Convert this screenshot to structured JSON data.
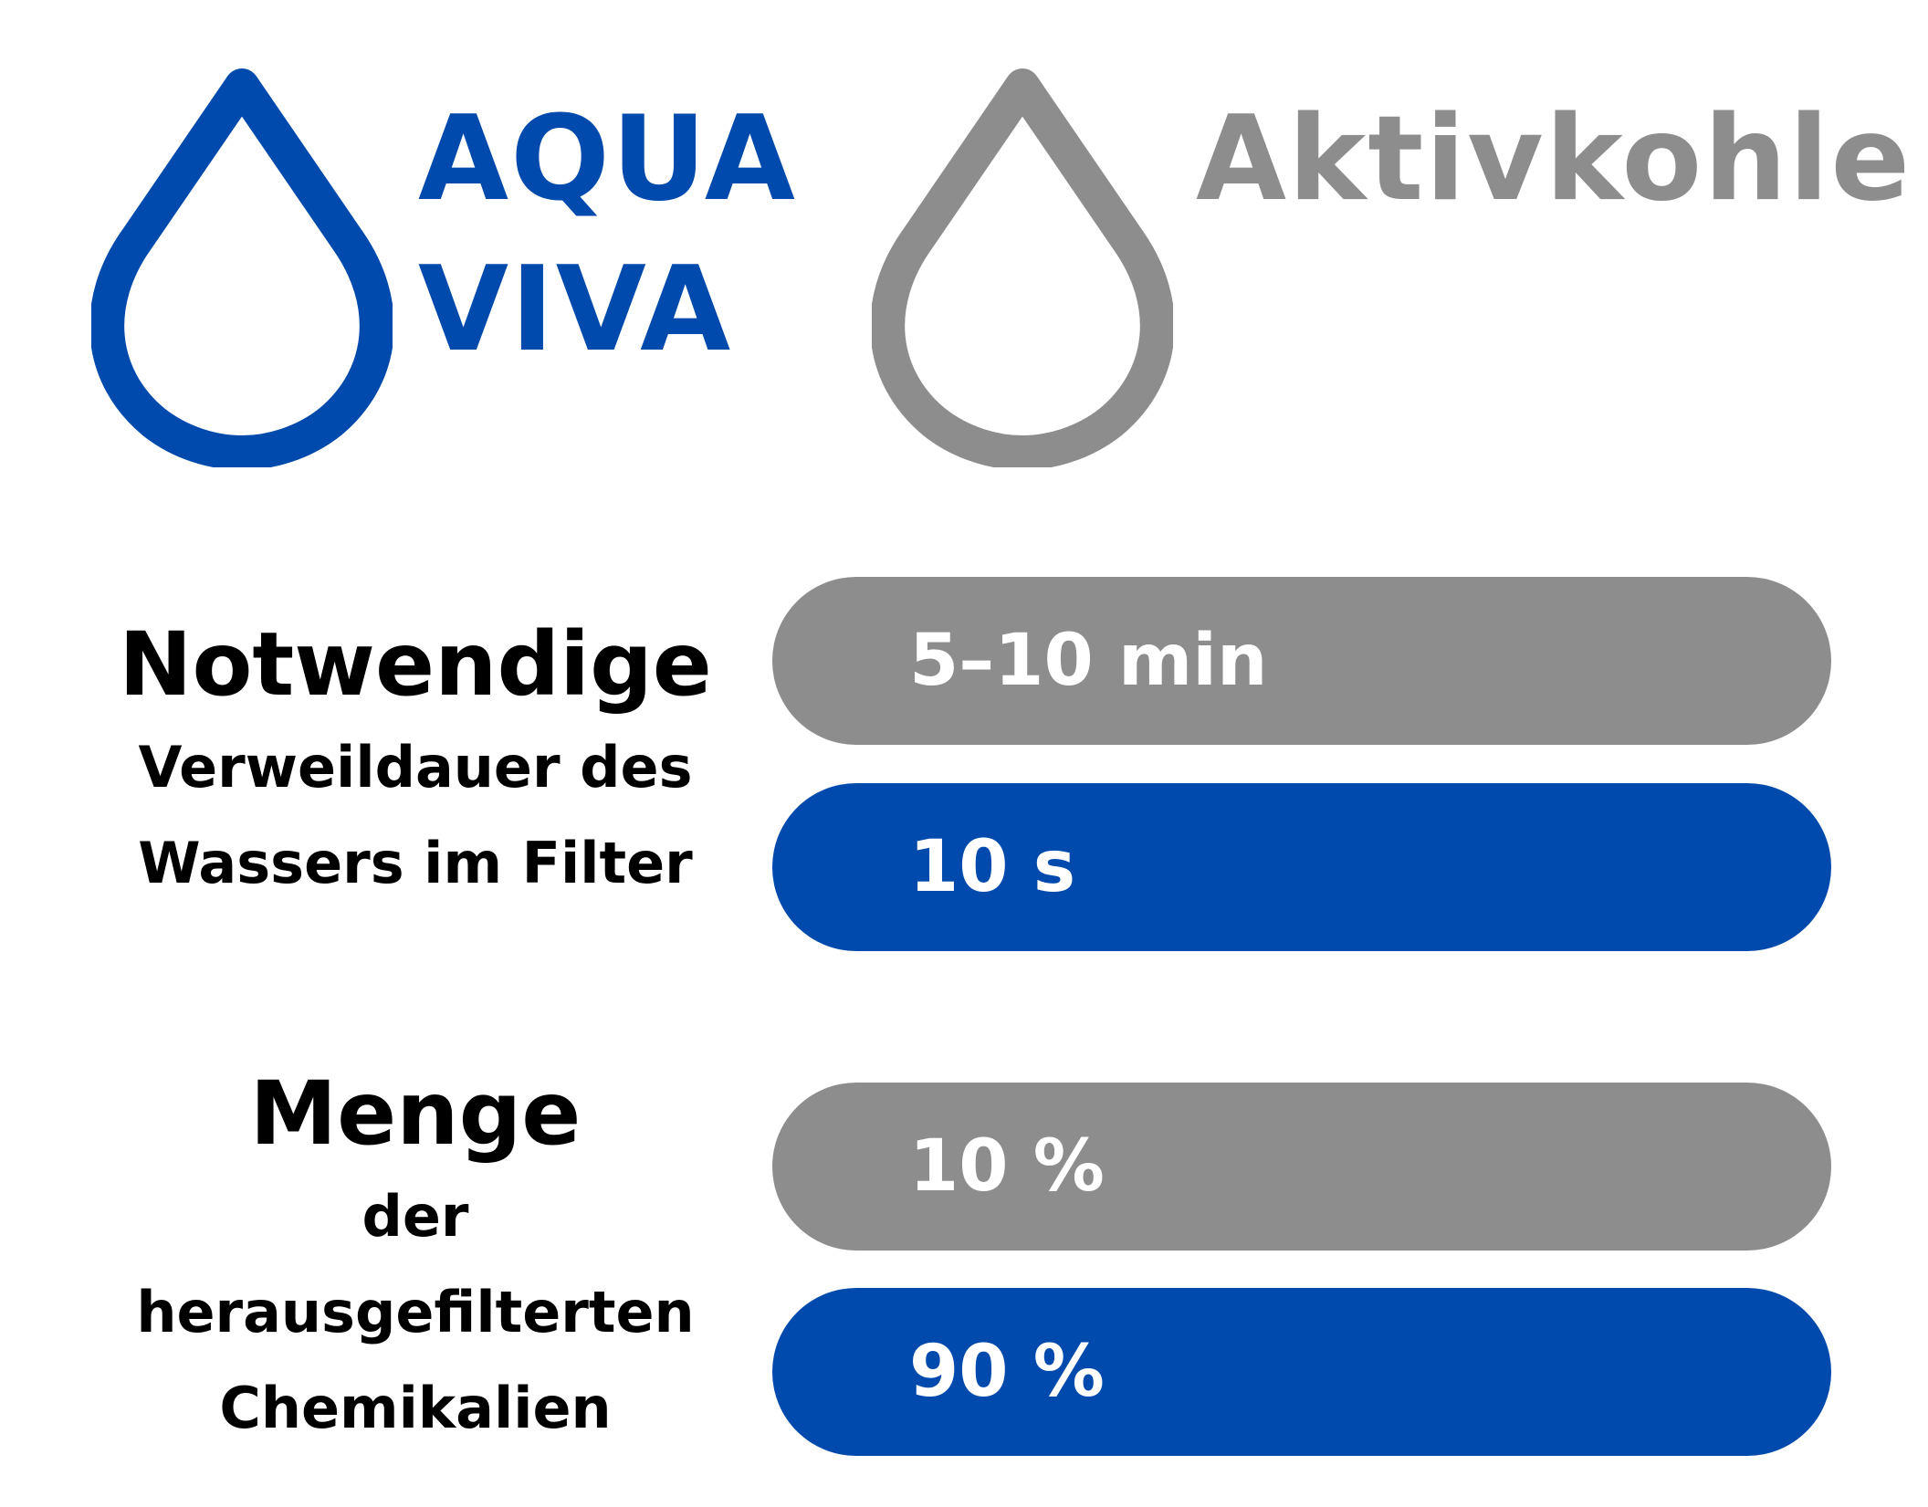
{
  "colors": {
    "blue": "#004AAD",
    "gray": "#8D8D8D",
    "text": "#000000",
    "pill_text": "#FFFFFF"
  },
  "brands": {
    "aqua_viva": {
      "line1": "AQUA",
      "line2": "VIVA",
      "icon": "water-drop-icon"
    },
    "aktivkohle": {
      "name": "Aktivkohle",
      "icon": "water-drop-icon"
    }
  },
  "comparisons": [
    {
      "heading": "Notwendige",
      "subline1": "Verweildauer des",
      "subline2": "Wassers im Filter",
      "aktivkohle_value": "5–10 min",
      "aqua_viva_value": "10 s"
    },
    {
      "heading": "Menge",
      "subline1": "der",
      "subline2": "herausgefilterten",
      "subline3": "Chemikalien",
      "aktivkohle_value": "10 %",
      "aqua_viva_value": "90 %"
    }
  ]
}
